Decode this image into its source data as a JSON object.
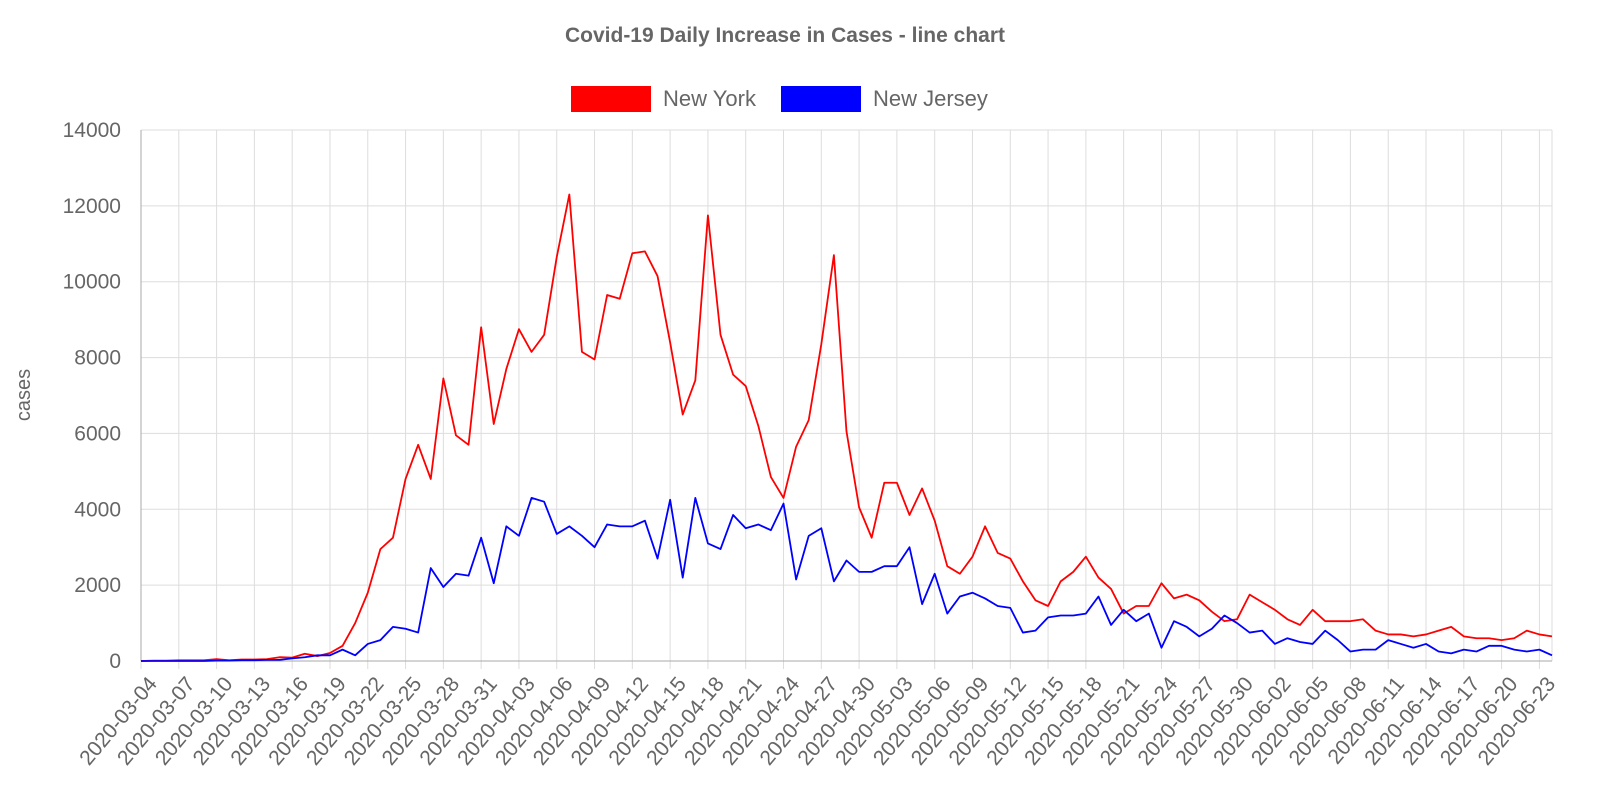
{
  "chart_data": {
    "type": "line",
    "title": "Covid-19 Daily Increase in Cases - line chart",
    "xlabel": "",
    "ylabel": "cases",
    "ylim": [
      0,
      14000
    ],
    "yticks": [
      0,
      2000,
      4000,
      6000,
      8000,
      10000,
      12000,
      14000
    ],
    "legend_position": "top-center",
    "grid": true,
    "x_tick_labels": [
      "2020-03-04",
      "2020-03-07",
      "2020-03-10",
      "2020-03-13",
      "2020-03-16",
      "2020-03-19",
      "2020-03-22",
      "2020-03-25",
      "2020-03-28",
      "2020-03-31",
      "2020-04-03",
      "2020-04-06",
      "2020-04-09",
      "2020-04-12",
      "2020-04-15",
      "2020-04-18",
      "2020-04-21",
      "2020-04-24",
      "2020-04-27",
      "2020-04-30",
      "2020-05-03",
      "2020-05-06",
      "2020-05-09",
      "2020-05-12",
      "2020-05-15",
      "2020-05-18",
      "2020-05-21",
      "2020-05-24",
      "2020-05-27",
      "2020-05-30",
      "2020-06-02",
      "2020-06-05",
      "2020-06-08",
      "2020-06-11",
      "2020-06-14",
      "2020-06-17",
      "2020-06-20",
      "2020-06-23"
    ],
    "x": [
      "2020-03-04",
      "2020-03-05",
      "2020-03-06",
      "2020-03-07",
      "2020-03-08",
      "2020-03-09",
      "2020-03-10",
      "2020-03-11",
      "2020-03-12",
      "2020-03-13",
      "2020-03-14",
      "2020-03-15",
      "2020-03-16",
      "2020-03-17",
      "2020-03-18",
      "2020-03-19",
      "2020-03-20",
      "2020-03-21",
      "2020-03-22",
      "2020-03-23",
      "2020-03-24",
      "2020-03-25",
      "2020-03-26",
      "2020-03-27",
      "2020-03-28",
      "2020-03-29",
      "2020-03-30",
      "2020-03-31",
      "2020-04-01",
      "2020-04-02",
      "2020-04-03",
      "2020-04-04",
      "2020-04-05",
      "2020-04-06",
      "2020-04-07",
      "2020-04-08",
      "2020-04-09",
      "2020-04-10",
      "2020-04-11",
      "2020-04-12",
      "2020-04-13",
      "2020-04-14",
      "2020-04-15",
      "2020-04-16",
      "2020-04-17",
      "2020-04-18",
      "2020-04-19",
      "2020-04-20",
      "2020-04-21",
      "2020-04-22",
      "2020-04-23",
      "2020-04-24",
      "2020-04-25",
      "2020-04-26",
      "2020-04-27",
      "2020-04-28",
      "2020-04-29",
      "2020-04-30",
      "2020-05-01",
      "2020-05-02",
      "2020-05-03",
      "2020-05-04",
      "2020-05-05",
      "2020-05-06",
      "2020-05-07",
      "2020-05-08",
      "2020-05-09",
      "2020-05-10",
      "2020-05-11",
      "2020-05-12",
      "2020-05-13",
      "2020-05-14",
      "2020-05-15",
      "2020-05-16",
      "2020-05-17",
      "2020-05-18",
      "2020-05-19",
      "2020-05-20",
      "2020-05-21",
      "2020-05-22",
      "2020-05-23",
      "2020-05-24",
      "2020-05-25",
      "2020-05-26",
      "2020-05-27",
      "2020-05-28",
      "2020-05-29",
      "2020-05-30",
      "2020-05-31",
      "2020-06-01",
      "2020-06-02",
      "2020-06-03",
      "2020-06-04",
      "2020-06-05",
      "2020-06-06",
      "2020-06-07",
      "2020-06-08",
      "2020-06-09",
      "2020-06-10",
      "2020-06-11",
      "2020-06-12",
      "2020-06-13",
      "2020-06-14",
      "2020-06-15",
      "2020-06-16",
      "2020-06-17",
      "2020-06-18",
      "2020-06-19",
      "2020-06-20",
      "2020-06-21",
      "2020-06-22",
      "2020-06-23",
      "2020-06-24"
    ],
    "series": [
      {
        "name": "New York",
        "color": "#ff0000",
        "values": [
          0,
          10,
          10,
          20,
          20,
          20,
          50,
          20,
          40,
          40,
          50,
          100,
          90,
          190,
          130,
          210,
          400,
          1000,
          1800,
          2950,
          3250,
          4800,
          5700,
          4800,
          7450,
          5950,
          5700,
          8800,
          6250,
          7700,
          8750,
          8150,
          8600,
          10650,
          12300,
          8150,
          7950,
          9650,
          9550,
          10750,
          10800,
          10150,
          8400,
          6500,
          7400,
          11750,
          8600,
          7550,
          7250,
          6200,
          4850,
          4300,
          5650,
          6350,
          8350,
          10700,
          6050,
          4050,
          3250,
          4700,
          4700,
          3850,
          4550,
          3700,
          2500,
          2300,
          2750,
          3550,
          2850,
          2700,
          2100,
          1600,
          1450,
          2100,
          2350,
          2750,
          2200,
          1900,
          1250,
          1450,
          1450,
          2050,
          1650,
          1750,
          1600,
          1300,
          1050,
          1100,
          1750,
          1550,
          1350,
          1100,
          950,
          1350,
          1050,
          1050,
          1050,
          1100,
          800,
          700,
          700,
          650,
          700,
          800,
          900,
          650,
          600,
          600,
          550,
          600,
          800,
          700,
          650
        ]
      },
      {
        "name": "New Jersey",
        "color": "#0000ff",
        "values": [
          0,
          0,
          0,
          0,
          0,
          0,
          10,
          10,
          20,
          20,
          30,
          30,
          70,
          100,
          150,
          150,
          300,
          150,
          450,
          550,
          900,
          850,
          750,
          2450,
          1950,
          2300,
          2250,
          3250,
          2050,
          3550,
          3300,
          4300,
          4200,
          3350,
          3550,
          3300,
          3000,
          3600,
          3550,
          3550,
          3700,
          2700,
          4250,
          2200,
          4300,
          3100,
          2950,
          3850,
          3500,
          3600,
          3450,
          4150,
          2150,
          3300,
          3500,
          2100,
          2650,
          2350,
          2350,
          2500,
          2500,
          3000,
          1500,
          2300,
          1250,
          1700,
          1800,
          1650,
          1450,
          1400,
          750,
          800,
          1150,
          1200,
          1200,
          1250,
          1700,
          950,
          1350,
          1050,
          1250,
          350,
          1050,
          900,
          650,
          850,
          1200,
          1000,
          750,
          800,
          450,
          600,
          500,
          450,
          800,
          550,
          250,
          300,
          300,
          550,
          450,
          350,
          450,
          250,
          200,
          300,
          250,
          400,
          400,
          300,
          250,
          300,
          150
        ]
      }
    ]
  }
}
